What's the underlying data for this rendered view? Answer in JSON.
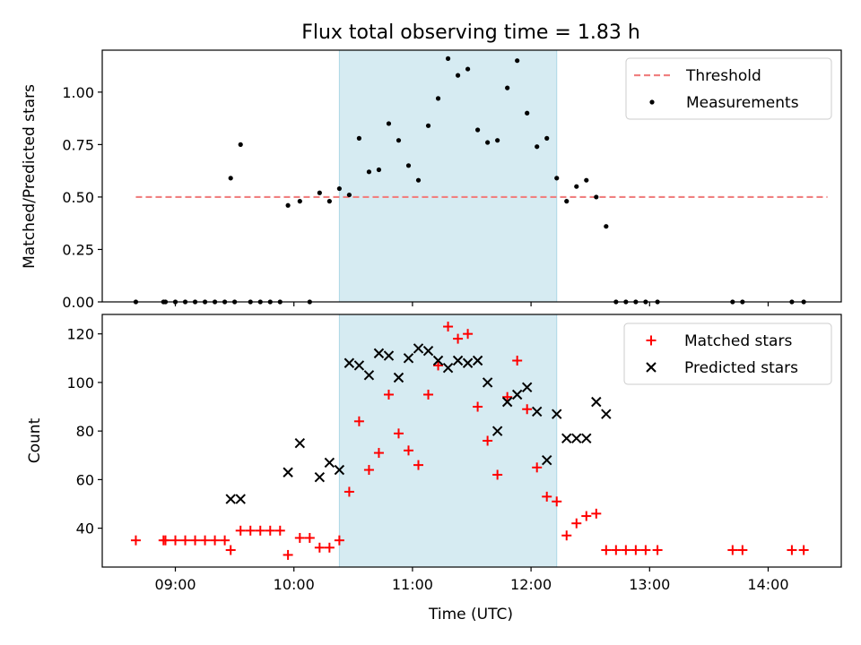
{
  "chart_data": [
    {
      "type": "line+scatter",
      "title": "Flux total observing time = 1.83 h",
      "ylabel": "Matched/Predicted stars",
      "ylim": [
        0.0,
        1.2
      ],
      "yticks": [
        "0.00",
        "0.25",
        "0.50",
        "0.75",
        "1.00"
      ],
      "yticks_values": [
        0.0,
        0.25,
        0.5,
        0.75,
        1.0
      ],
      "xlim": [
        "08:23",
        "14:37"
      ],
      "shaded_interval": [
        "10:23",
        "12:13"
      ],
      "legend_position": "upper right",
      "threshold": {
        "name": "Threshold",
        "value": 0.5,
        "x_range": [
          "08:40",
          "14:30"
        ],
        "color": "#f08080",
        "style": "dashed"
      },
      "series": [
        {
          "name": "Measurements",
          "marker": "dot",
          "color": "#000000",
          "points": [
            [
              "08:40",
              0.0
            ],
            [
              "08:54",
              0.0
            ],
            [
              "08:55",
              0.0
            ],
            [
              "09:00",
              0.0
            ],
            [
              "09:05",
              0.0
            ],
            [
              "09:10",
              0.0
            ],
            [
              "09:15",
              0.0
            ],
            [
              "09:20",
              0.0
            ],
            [
              "09:25",
              0.0
            ],
            [
              "09:30",
              0.0
            ],
            [
              "09:28",
              0.59
            ],
            [
              "09:33",
              0.75
            ],
            [
              "09:38",
              0.0
            ],
            [
              "09:43",
              0.0
            ],
            [
              "09:48",
              0.0
            ],
            [
              "09:53",
              0.0
            ],
            [
              "09:57",
              0.46
            ],
            [
              "10:03",
              0.48
            ],
            [
              "10:08",
              0.0
            ],
            [
              "10:13",
              0.52
            ],
            [
              "10:18",
              0.48
            ],
            [
              "10:23",
              0.54
            ],
            [
              "10:28",
              0.51
            ],
            [
              "10:33",
              0.78
            ],
            [
              "10:38",
              0.62
            ],
            [
              "10:43",
              0.63
            ],
            [
              "10:48",
              0.85
            ],
            [
              "10:53",
              0.77
            ],
            [
              "10:58",
              0.65
            ],
            [
              "11:03",
              0.58
            ],
            [
              "11:08",
              0.84
            ],
            [
              "11:13",
              0.97
            ],
            [
              "11:18",
              1.16
            ],
            [
              "11:23",
              1.08
            ],
            [
              "11:28",
              1.11
            ],
            [
              "11:33",
              0.82
            ],
            [
              "11:38",
              0.76
            ],
            [
              "11:43",
              0.77
            ],
            [
              "11:48",
              1.02
            ],
            [
              "11:53",
              1.15
            ],
            [
              "11:58",
              0.9
            ],
            [
              "12:03",
              0.74
            ],
            [
              "12:08",
              0.78
            ],
            [
              "12:13",
              0.59
            ],
            [
              "12:18",
              0.48
            ],
            [
              "12:23",
              0.55
            ],
            [
              "12:28",
              0.58
            ],
            [
              "12:33",
              0.5
            ],
            [
              "12:38",
              0.36
            ],
            [
              "12:43",
              0.0
            ],
            [
              "12:48",
              0.0
            ],
            [
              "12:53",
              0.0
            ],
            [
              "12:58",
              0.0
            ],
            [
              "13:04",
              0.0
            ],
            [
              "13:42",
              0.0
            ],
            [
              "13:47",
              0.0
            ],
            [
              "14:12",
              0.0
            ],
            [
              "14:18",
              0.0
            ]
          ]
        }
      ]
    },
    {
      "type": "scatter",
      "xlabel": "Time (UTC)",
      "ylabel": "Count",
      "ylim": [
        24,
        128
      ],
      "yticks": [
        "40",
        "60",
        "80",
        "100",
        "120"
      ],
      "yticks_values": [
        40,
        60,
        80,
        100,
        120
      ],
      "xlim": [
        "08:23",
        "14:37"
      ],
      "xticks": [
        "09:00",
        "10:00",
        "11:00",
        "12:00",
        "13:00",
        "14:00"
      ],
      "shaded_interval": [
        "10:23",
        "12:13"
      ],
      "legend_position": "upper right",
      "series": [
        {
          "name": "Matched stars",
          "marker": "plus",
          "color": "#ff0000",
          "points": [
            [
              "08:40",
              35
            ],
            [
              "08:54",
              35
            ],
            [
              "08:55",
              35
            ],
            [
              "09:00",
              35
            ],
            [
              "09:05",
              35
            ],
            [
              "09:10",
              35
            ],
            [
              "09:15",
              35
            ],
            [
              "09:20",
              35
            ],
            [
              "09:25",
              35
            ],
            [
              "09:28",
              31
            ],
            [
              "09:33",
              39
            ],
            [
              "09:38",
              39
            ],
            [
              "09:43",
              39
            ],
            [
              "09:48",
              39
            ],
            [
              "09:53",
              39
            ],
            [
              "09:57",
              29
            ],
            [
              "10:03",
              36
            ],
            [
              "10:08",
              36
            ],
            [
              "10:13",
              32
            ],
            [
              "10:18",
              32
            ],
            [
              "10:23",
              35
            ],
            [
              "10:28",
              55
            ],
            [
              "10:33",
              84
            ],
            [
              "10:38",
              64
            ],
            [
              "10:43",
              71
            ],
            [
              "10:48",
              95
            ],
            [
              "10:53",
              79
            ],
            [
              "10:58",
              72
            ],
            [
              "11:03",
              66
            ],
            [
              "11:08",
              95
            ],
            [
              "11:13",
              107
            ],
            [
              "11:18",
              123
            ],
            [
              "11:23",
              118
            ],
            [
              "11:28",
              120
            ],
            [
              "11:33",
              90
            ],
            [
              "11:38",
              76
            ],
            [
              "11:43",
              62
            ],
            [
              "11:48",
              94
            ],
            [
              "11:53",
              109
            ],
            [
              "11:58",
              89
            ],
            [
              "12:03",
              65
            ],
            [
              "12:08",
              53
            ],
            [
              "12:13",
              51
            ],
            [
              "12:18",
              37
            ],
            [
              "12:23",
              42
            ],
            [
              "12:28",
              45
            ],
            [
              "12:33",
              46
            ],
            [
              "12:38",
              31
            ],
            [
              "12:43",
              31
            ],
            [
              "12:48",
              31
            ],
            [
              "12:53",
              31
            ],
            [
              "12:58",
              31
            ],
            [
              "13:04",
              31
            ],
            [
              "13:42",
              31
            ],
            [
              "13:47",
              31
            ],
            [
              "14:12",
              31
            ],
            [
              "14:18",
              31
            ]
          ]
        },
        {
          "name": "Predicted stars",
          "marker": "x",
          "color": "#000000",
          "points": [
            [
              "09:28",
              52
            ],
            [
              "09:33",
              52
            ],
            [
              "09:57",
              63
            ],
            [
              "10:03",
              75
            ],
            [
              "10:13",
              61
            ],
            [
              "10:18",
              67
            ],
            [
              "10:23",
              64
            ],
            [
              "10:28",
              108
            ],
            [
              "10:33",
              107
            ],
            [
              "10:38",
              103
            ],
            [
              "10:43",
              112
            ],
            [
              "10:48",
              111
            ],
            [
              "10:53",
              102
            ],
            [
              "10:58",
              110
            ],
            [
              "11:03",
              114
            ],
            [
              "11:08",
              113
            ],
            [
              "11:13",
              109
            ],
            [
              "11:18",
              106
            ],
            [
              "11:23",
              109
            ],
            [
              "11:28",
              108
            ],
            [
              "11:33",
              109
            ],
            [
              "11:38",
              100
            ],
            [
              "11:43",
              80
            ],
            [
              "11:48",
              92
            ],
            [
              "11:53",
              95
            ],
            [
              "11:58",
              98
            ],
            [
              "12:03",
              88
            ],
            [
              "12:08",
              68
            ],
            [
              "12:13",
              87
            ],
            [
              "12:18",
              77
            ],
            [
              "12:23",
              77
            ],
            [
              "12:28",
              77
            ],
            [
              "12:33",
              92
            ],
            [
              "12:38",
              87
            ]
          ]
        }
      ]
    }
  ],
  "colors": {
    "shade": "#add8e6",
    "threshold": "#f08080",
    "matched": "#ff0000",
    "predicted": "#000000",
    "measurement": "#000000"
  }
}
